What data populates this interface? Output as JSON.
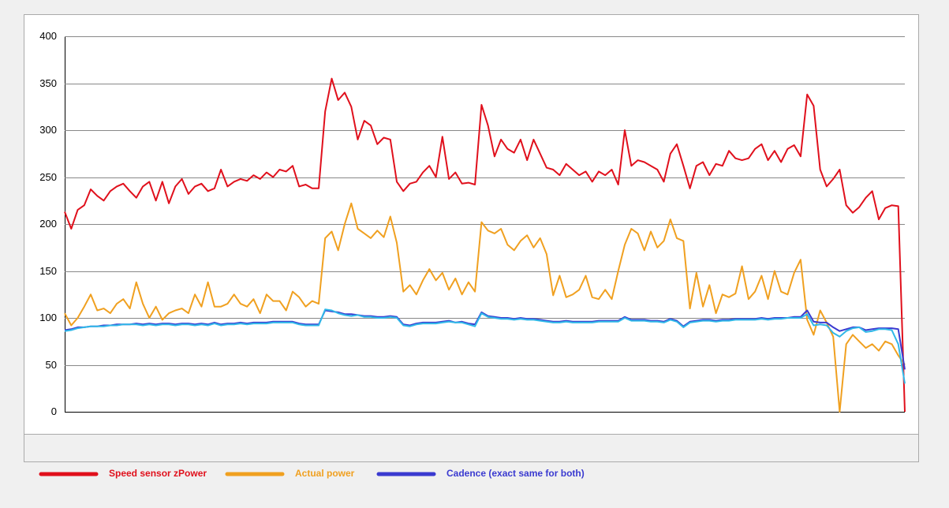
{
  "chart_data": {
    "type": "line",
    "ylim": [
      0,
      400
    ],
    "yticks": [
      0,
      50,
      100,
      150,
      200,
      250,
      300,
      350,
      400
    ],
    "grid": true,
    "series": [
      {
        "name": "Speed sensor zPower",
        "color": "#e0101c",
        "values": [
          213,
          195,
          215,
          220,
          237,
          230,
          225,
          235,
          240,
          243,
          235,
          228,
          240,
          245,
          225,
          245,
          222,
          240,
          248,
          232,
          240,
          243,
          235,
          238,
          258,
          240,
          245,
          248,
          246,
          252,
          248,
          255,
          250,
          258,
          256,
          262,
          240,
          242,
          238,
          238,
          320,
          355,
          332,
          340,
          325,
          290,
          310,
          305,
          285,
          292,
          290,
          245,
          235,
          243,
          245,
          255,
          262,
          250,
          293,
          248,
          255,
          243,
          244,
          242,
          327,
          305,
          272,
          290,
          280,
          276,
          290,
          268,
          290,
          275,
          260,
          258,
          252,
          264,
          258,
          252,
          256,
          245,
          256,
          252,
          258,
          242,
          300,
          262,
          268,
          266,
          262,
          258,
          245,
          275,
          285,
          262,
          238,
          262,
          266,
          252,
          264,
          262,
          278,
          270,
          268,
          270,
          280,
          285,
          268,
          278,
          266,
          280,
          284,
          272,
          338,
          326,
          258,
          240,
          248,
          258,
          220,
          212,
          218,
          228,
          235,
          205,
          217,
          220,
          219,
          0
        ]
      },
      {
        "name": "Actual power",
        "color": "#f0a020",
        "values": [
          105,
          92,
          100,
          112,
          125,
          108,
          110,
          105,
          115,
          120,
          110,
          138,
          115,
          100,
          112,
          98,
          105,
          108,
          110,
          105,
          125,
          112,
          138,
          112,
          112,
          115,
          125,
          115,
          112,
          120,
          105,
          125,
          118,
          118,
          108,
          128,
          122,
          112,
          118,
          115,
          185,
          192,
          172,
          200,
          222,
          195,
          190,
          185,
          193,
          186,
          208,
          180,
          128,
          135,
          125,
          140,
          152,
          140,
          148,
          130,
          142,
          125,
          138,
          128,
          202,
          193,
          190,
          195,
          178,
          172,
          182,
          188,
          175,
          185,
          168,
          124,
          145,
          122,
          125,
          130,
          145,
          122,
          120,
          130,
          120,
          150,
          178,
          195,
          190,
          172,
          192,
          175,
          182,
          205,
          185,
          182,
          110,
          148,
          112,
          135,
          105,
          125,
          122,
          126,
          155,
          120,
          128,
          145,
          120,
          150,
          128,
          125,
          148,
          162,
          98,
          82,
          108,
          95,
          80,
          0,
          72,
          82,
          75,
          68,
          72,
          65,
          75,
          72,
          60,
          50
        ]
      },
      {
        "name": "Cadence (exact same for both)",
        "color": "#3a3ad0",
        "values": [
          87,
          88,
          90,
          90,
          91,
          91,
          92,
          92,
          93,
          93,
          93,
          94,
          93,
          94,
          93,
          94,
          94,
          93,
          94,
          94,
          93,
          94,
          93,
          95,
          93,
          94,
          94,
          95,
          94,
          95,
          95,
          95,
          96,
          96,
          96,
          96,
          94,
          93,
          93,
          93,
          108,
          107,
          106,
          104,
          104,
          103,
          102,
          102,
          101,
          101,
          102,
          101,
          93,
          92,
          94,
          95,
          95,
          95,
          96,
          97,
          95,
          96,
          94,
          93,
          106,
          102,
          101,
          100,
          100,
          99,
          100,
          99,
          99,
          98,
          97,
          96,
          96,
          97,
          96,
          96,
          96,
          96,
          97,
          97,
          97,
          97,
          101,
          98,
          98,
          98,
          97,
          97,
          96,
          99,
          97,
          91,
          96,
          97,
          98,
          98,
          97,
          98,
          98,
          99,
          99,
          99,
          99,
          100,
          99,
          100,
          100,
          100,
          101,
          101,
          108,
          96,
          95,
          95,
          90,
          86,
          88,
          90,
          90,
          87,
          88,
          89,
          89,
          89,
          88,
          45
        ]
      },
      {
        "color": "#30b8e8",
        "values": [
          86,
          87,
          89,
          90,
          91,
          91,
          91,
          92,
          92,
          93,
          93,
          93,
          92,
          93,
          92,
          93,
          93,
          92,
          93,
          93,
          92,
          93,
          92,
          94,
          92,
          93,
          93,
          94,
          93,
          94,
          94,
          94,
          95,
          95,
          95,
          95,
          93,
          92,
          92,
          92,
          109,
          108,
          105,
          103,
          102,
          103,
          101,
          101,
          100,
          100,
          101,
          100,
          92,
          91,
          93,
          94,
          94,
          94,
          95,
          96,
          95,
          95,
          93,
          91,
          105,
          101,
          100,
          99,
          99,
          98,
          99,
          98,
          98,
          97,
          96,
          95,
          95,
          96,
          95,
          95,
          95,
          95,
          96,
          96,
          96,
          96,
          100,
          97,
          97,
          97,
          96,
          96,
          95,
          98,
          96,
          90,
          95,
          96,
          97,
          97,
          96,
          97,
          97,
          98,
          98,
          98,
          98,
          99,
          98,
          99,
          99,
          100,
          100,
          100,
          104,
          92,
          93,
          92,
          84,
          80,
          86,
          89,
          90,
          85,
          86,
          88,
          88,
          87,
          72,
          30
        ]
      }
    ]
  }
}
